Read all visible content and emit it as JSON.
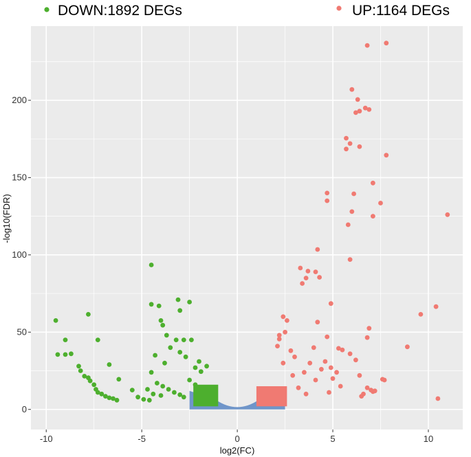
{
  "chart_data": {
    "type": "scatter",
    "title": "",
    "xlabel": "log2(FC)",
    "ylabel": "-log10(FDR)",
    "xlim": [
      -10.8,
      11.8
    ],
    "ylim": [
      -13,
      248
    ],
    "x_ticks": [
      -10,
      -5,
      0,
      5,
      10
    ],
    "x_tick_labels": [
      "-10",
      "-5",
      "0",
      "5",
      "10"
    ],
    "y_ticks": [
      0,
      50,
      100,
      150,
      200
    ],
    "y_tick_labels": [
      "0",
      "50",
      "100",
      "150",
      "200"
    ],
    "grid": true,
    "legend_position": "top",
    "background": "#ebebeb",
    "colors": {
      "down": "#4daf2e",
      "up": "#f07a72",
      "ns": "#6f95c9",
      "grid": "#ffffff"
    },
    "series": [
      {
        "name": "DOWN:1892 DEGs",
        "key": "down",
        "color": "#4daf2e",
        "points": [
          [
            -9.5,
            57.5
          ],
          [
            -9.0,
            45
          ],
          [
            -9.4,
            35.5
          ],
          [
            -9.0,
            35.5
          ],
          [
            -8.7,
            36
          ],
          [
            -8.3,
            28
          ],
          [
            -8.2,
            25
          ],
          [
            -8.0,
            21.5
          ],
          [
            -7.8,
            20.5
          ],
          [
            -7.7,
            18.5
          ],
          [
            -7.5,
            16
          ],
          [
            -7.4,
            13
          ],
          [
            -7.3,
            11
          ],
          [
            -7.1,
            10
          ],
          [
            -6.9,
            8.5
          ],
          [
            -6.7,
            7.5
          ],
          [
            -6.5,
            7
          ],
          [
            -6.3,
            6
          ],
          [
            -7.8,
            61.5
          ],
          [
            -7.3,
            45
          ],
          [
            -6.7,
            29
          ],
          [
            -6.2,
            19.5
          ],
          [
            -5.5,
            12.5
          ],
          [
            -5.2,
            8
          ],
          [
            -4.9,
            6.5
          ],
          [
            -4.6,
            6
          ],
          [
            -4.5,
            93.5
          ],
          [
            -4.5,
            68
          ],
          [
            -4.1,
            67
          ],
          [
            -4.0,
            57.5
          ],
          [
            -3.9,
            54.5
          ],
          [
            -3.1,
            71
          ],
          [
            -3.0,
            64
          ],
          [
            -2.5,
            69.5
          ],
          [
            -3.7,
            48
          ],
          [
            -3.2,
            45
          ],
          [
            -2.8,
            45
          ],
          [
            -2.4,
            45
          ],
          [
            -3.5,
            40
          ],
          [
            -3.0,
            37
          ],
          [
            -2.7,
            34
          ],
          [
            -2.0,
            31
          ],
          [
            -4.3,
            35
          ],
          [
            -3.8,
            30
          ],
          [
            -4.5,
            24
          ],
          [
            -2.2,
            27
          ],
          [
            -1.9,
            24.5
          ],
          [
            -1.6,
            28
          ],
          [
            -4.2,
            17
          ],
          [
            -3.9,
            15
          ],
          [
            -3.6,
            13
          ],
          [
            -3.3,
            11
          ],
          [
            -3.0,
            9.5
          ],
          [
            -2.8,
            8
          ],
          [
            -2.5,
            19
          ],
          [
            -2.2,
            16
          ],
          [
            -2.0,
            12
          ],
          [
            -4.7,
            13
          ],
          [
            -4.4,
            10
          ],
          [
            -4.0,
            9
          ]
        ]
      },
      {
        "name": "UP:1164 DEGs",
        "key": "up",
        "color": "#f07a72",
        "points": [
          [
            7.8,
            237
          ],
          [
            6.8,
            235.5
          ],
          [
            6.0,
            207
          ],
          [
            6.3,
            200.5
          ],
          [
            6.2,
            192
          ],
          [
            6.4,
            193
          ],
          [
            6.7,
            195
          ],
          [
            6.9,
            194
          ],
          [
            5.7,
            175.5
          ],
          [
            5.9,
            172
          ],
          [
            6.4,
            170
          ],
          [
            5.7,
            168.5
          ],
          [
            7.8,
            164.5
          ],
          [
            7.1,
            146.5
          ],
          [
            4.7,
            140
          ],
          [
            6.1,
            139.5
          ],
          [
            4.7,
            135
          ],
          [
            7.5,
            133.5
          ],
          [
            6.0,
            128
          ],
          [
            7.1,
            125
          ],
          [
            11.0,
            126
          ],
          [
            5.8,
            119.5
          ],
          [
            4.2,
            103.5
          ],
          [
            5.9,
            97
          ],
          [
            3.3,
            91.5
          ],
          [
            3.7,
            89.5
          ],
          [
            4.1,
            89
          ],
          [
            3.6,
            85
          ],
          [
            4.3,
            85.5
          ],
          [
            3.4,
            81.5
          ],
          [
            4.9,
            68.5
          ],
          [
            10.4,
            66.5
          ],
          [
            2.4,
            60
          ],
          [
            2.6,
            57.5
          ],
          [
            4.2,
            56.5
          ],
          [
            9.6,
            61.5
          ],
          [
            6.9,
            52.5
          ],
          [
            2.5,
            50
          ],
          [
            2.2,
            48
          ],
          [
            6.8,
            46.5
          ],
          [
            2.2,
            45.5
          ],
          [
            4.7,
            47
          ],
          [
            8.9,
            40.5
          ],
          [
            5.3,
            39.5
          ],
          [
            5.5,
            38.5
          ],
          [
            5.9,
            36
          ],
          [
            2.1,
            41
          ],
          [
            4.0,
            40
          ],
          [
            6.2,
            32
          ],
          [
            4.6,
            31
          ],
          [
            4.9,
            27
          ],
          [
            5.2,
            24
          ],
          [
            6.4,
            22
          ],
          [
            7.6,
            19.5
          ],
          [
            7.7,
            19
          ],
          [
            6.8,
            14
          ],
          [
            7.0,
            12.5
          ],
          [
            7.1,
            11.5
          ],
          [
            7.2,
            12
          ],
          [
            6.6,
            10
          ],
          [
            6.5,
            8.5
          ],
          [
            10.5,
            7
          ],
          [
            4.4,
            26
          ],
          [
            5.0,
            20
          ],
          [
            3.8,
            30
          ],
          [
            3.0,
            34
          ],
          [
            2.8,
            38
          ],
          [
            2.4,
            30
          ],
          [
            4.1,
            19
          ],
          [
            5.4,
            15
          ],
          [
            4.8,
            11
          ],
          [
            3.2,
            14
          ],
          [
            3.6,
            10
          ],
          [
            2.9,
            22
          ],
          [
            3.5,
            24
          ]
        ]
      },
      {
        "name": "",
        "key": "ns",
        "color": "#6f95c9",
        "points": []
      }
    ],
    "legend": [
      {
        "label": "DOWN:1892 DEGs",
        "color": "#4daf2e"
      },
      {
        "label": "UP:1164 DEGs",
        "color": "#f07a72"
      }
    ]
  }
}
